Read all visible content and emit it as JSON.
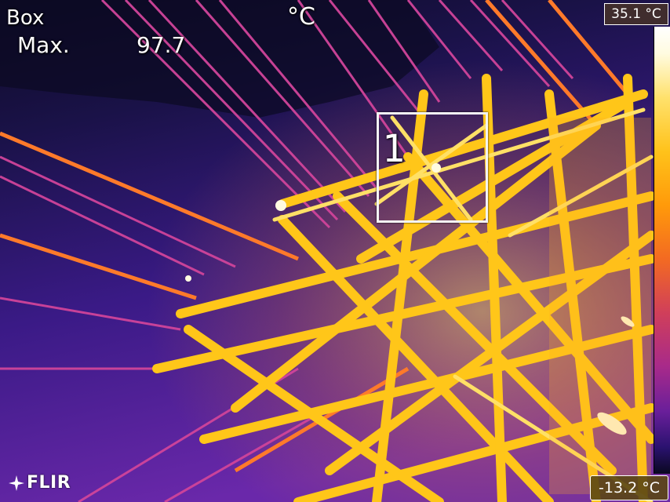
{
  "overlay": {
    "measure_title": "Box",
    "measure_label": "Max.",
    "measure_value": "97.7",
    "unit": "°C",
    "roi_number": "1"
  },
  "scale": {
    "max": "35.1 °C",
    "min": "-13.2 °C",
    "palette": "iron"
  },
  "brand": {
    "name": "FLIR"
  },
  "colors": {
    "background": "#2a1660",
    "hot": "#ffd21a",
    "warm": "#ff8a1a",
    "line": "#e24a8a",
    "cool": "#6a2ea8"
  }
}
